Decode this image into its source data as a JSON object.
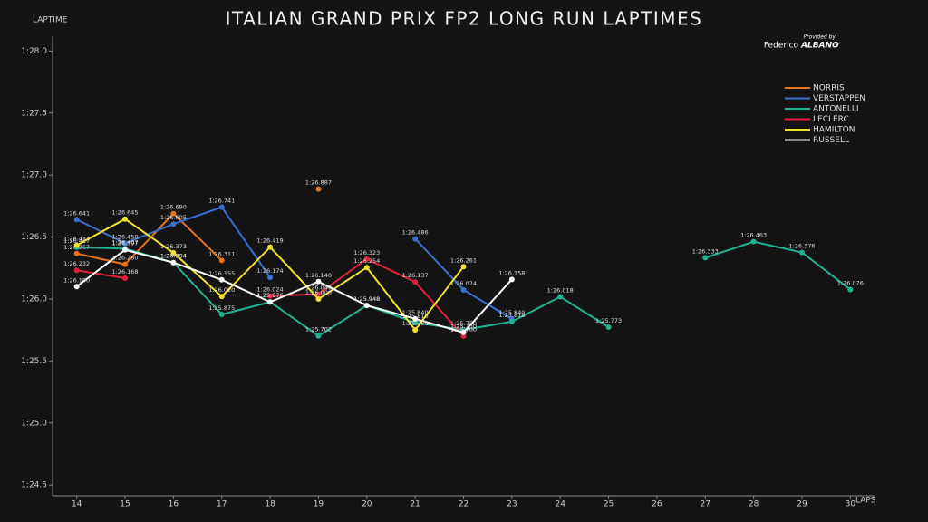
{
  "chart_data": {
    "type": "line",
    "title": "ITALIAN GRAND PRIX FP2 LONG RUN LAPTIMES",
    "ylabel": "LAPTIME",
    "xlabel": "LAPS",
    "annotations": [
      "Provided by",
      "Federico",
      "ALBANO"
    ],
    "x": [
      14,
      15,
      16,
      17,
      18,
      19,
      20,
      21,
      22,
      23,
      24,
      25,
      26,
      27,
      28,
      29,
      30
    ],
    "xlim": [
      13.5,
      30.5
    ],
    "xticks": [
      14,
      15,
      16,
      17,
      18,
      19,
      20,
      21,
      22,
      23,
      24,
      25,
      26,
      27,
      28,
      29,
      30
    ],
    "ylim": [
      84.45,
      88.2
    ],
    "yticks": [
      {
        "value": 84.5,
        "label": "1:24.5"
      },
      {
        "value": 85.0,
        "label": "1:25.0"
      },
      {
        "value": 85.5,
        "label": "1:25.5"
      },
      {
        "value": 86.0,
        "label": "1:26.0"
      },
      {
        "value": 86.5,
        "label": "1:26.5"
      },
      {
        "value": 87.0,
        "label": "1:27.0"
      },
      {
        "value": 87.5,
        "label": "1:27.5"
      },
      {
        "value": 88.0,
        "label": "1:28.0"
      }
    ],
    "grid": false,
    "legend": "upper right",
    "series": [
      {
        "name": "NORRIS",
        "color": "#e8731a",
        "values": [
          86.367,
          86.28,
          86.69,
          86.311,
          null,
          86.887,
          null,
          null,
          null,
          null,
          null,
          null,
          null,
          null,
          null,
          null,
          null
        ],
        "value_labels": [
          "1:26.367",
          "1:26.280",
          "1:26.690",
          "1:26.311",
          null,
          "1:26.887",
          null,
          null,
          null,
          null,
          null,
          null,
          null,
          null,
          null,
          null,
          null
        ]
      },
      {
        "name": "VERSTAPPEN",
        "color": "#3b6fd1",
        "values": [
          86.641,
          86.45,
          86.605,
          86.741,
          86.174,
          null,
          null,
          86.486,
          86.074,
          85.84,
          null,
          null,
          null,
          null,
          null,
          null,
          null
        ],
        "value_labels": [
          "1:26.641",
          "1:26.450",
          "1:26.605",
          "1:26.741",
          "1:26.174",
          null,
          null,
          "1:26.486",
          "1:26.074",
          "1:25.840",
          null,
          null,
          null,
          null,
          null,
          null,
          null
        ]
      },
      {
        "name": "ANTONELLI",
        "color": "#1fb394",
        "values": [
          86.417,
          86.407,
          86.294,
          85.875,
          85.976,
          85.702,
          85.948,
          85.81,
          85.75,
          85.818,
          86.018,
          85.773,
          null,
          86.333,
          86.463,
          86.376,
          86.076
        ],
        "value_labels": [
          "1:26.417",
          "1:26.407",
          "1:26.294",
          "1:25.875",
          "1:25.976",
          "1:25.702",
          "1:25.948",
          "1:25.810",
          "1:25.750",
          "1:25.818",
          "1:26.018",
          "1:25.773",
          null,
          "1:26.333",
          "1:26.463",
          "1:26.376",
          "1:26.076"
        ]
      },
      {
        "name": "LECLERC",
        "color": "#e0203c",
        "values": [
          86.232,
          86.168,
          null,
          null,
          86.024,
          86.04,
          86.323,
          86.137,
          85.7,
          null,
          null,
          null,
          null,
          null,
          null,
          null,
          null
        ],
        "value_labels": [
          "1:26.232",
          "1:26.168",
          null,
          null,
          "1:26.024",
          "1:26.040",
          "1:26.323",
          "1:26.137",
          "1:25.700",
          null,
          null,
          null,
          null,
          null,
          null,
          null,
          null
        ]
      },
      {
        "name": "HAMILTON",
        "color": "#f0e32a",
        "values": [
          86.434,
          86.645,
          86.373,
          86.02,
          86.419,
          86.0,
          86.254,
          85.75,
          86.261,
          null,
          null,
          null,
          null,
          null,
          null,
          null,
          null
        ],
        "value_labels": [
          "1:26.434",
          "1:26.645",
          "1:26.373",
          "1:26.020",
          "1:26.419",
          "1:26.000",
          "1:26.254",
          "1:25.750",
          "1:26.261",
          null,
          null,
          null,
          null,
          null,
          null,
          null,
          null
        ]
      },
      {
        "name": "RUSSELL",
        "color": "#ffffff",
        "values": [
          86.1,
          86.397,
          86.294,
          86.155,
          85.976,
          86.14,
          85.948,
          85.84,
          85.73,
          86.158,
          null,
          null,
          null,
          null,
          null,
          null,
          null
        ],
        "value_labels": [
          "1:26.100",
          "1:26.397",
          "1:26.294",
          "1:26.155",
          "1:25.976",
          "1:26.140",
          "1:25.948",
          "1:25.840",
          "1:25.730",
          "1:26.158",
          null,
          null,
          null,
          null,
          null,
          null,
          null
        ]
      }
    ]
  }
}
